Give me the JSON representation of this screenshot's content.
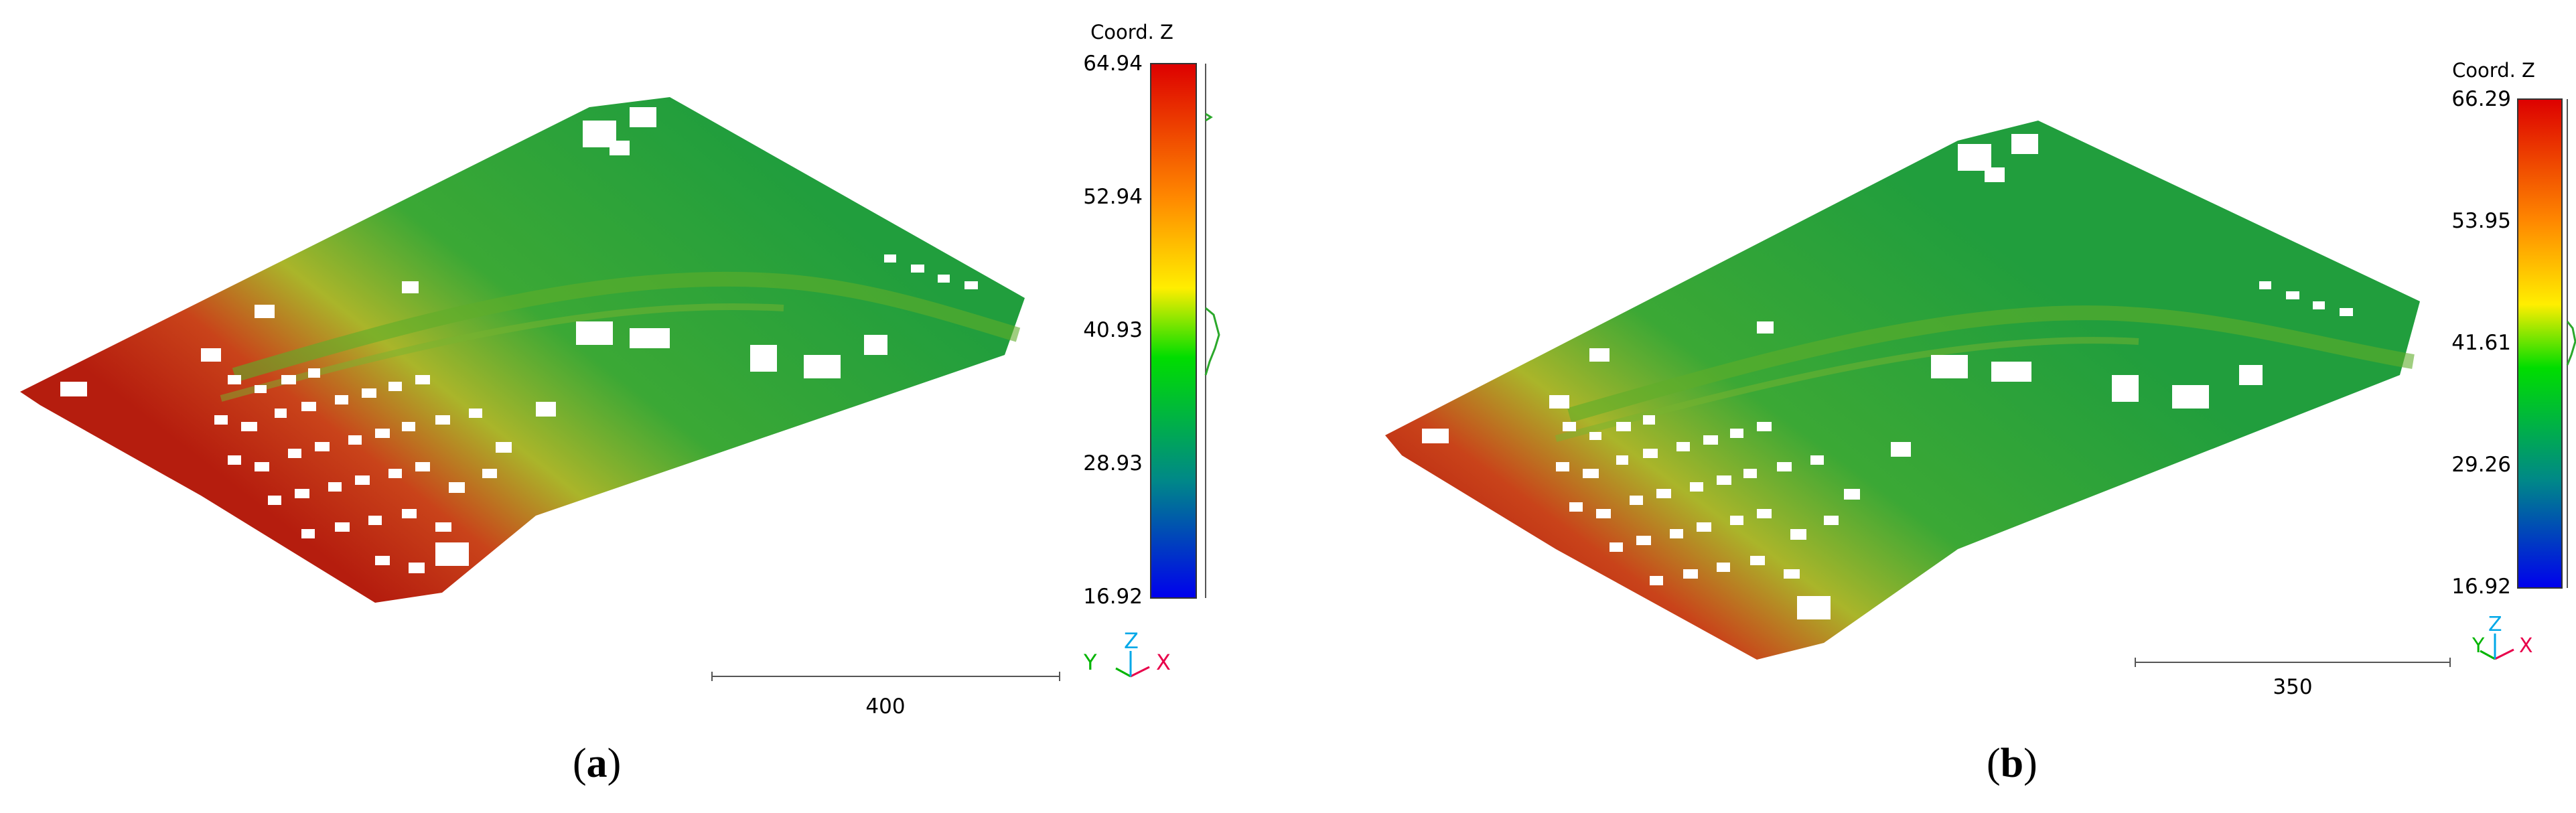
{
  "panels": [
    {
      "id": "a",
      "caption_open": "(",
      "caption_letter": "a",
      "caption_close": ")",
      "colorbar_title": "Coord. Z",
      "colorbar_ticks": [
        "64.94",
        "52.94",
        "40.93",
        "28.93",
        "16.92"
      ],
      "scale_label": "400",
      "axis_labels": {
        "y": "Y",
        "z": "Z",
        "x": "X"
      }
    },
    {
      "id": "b",
      "caption_open": "(",
      "caption_letter": "b",
      "caption_close": ")",
      "colorbar_title": "Coord. Z",
      "colorbar_ticks": [
        "66.29",
        "53.95",
        "41.61",
        "29.26",
        "16.92"
      ],
      "scale_label": "350",
      "axis_labels": {
        "y": "Y",
        "z": "Z",
        "x": "X"
      }
    }
  ],
  "colors": {
    "ramp": [
      "#dd0000",
      "#ff8800",
      "#ffee00",
      "#00dd00",
      "#008888",
      "#0000ee"
    ],
    "axis_x": "#e8004a",
    "axis_y": "#00b400",
    "axis_z": "#00a8e8"
  }
}
